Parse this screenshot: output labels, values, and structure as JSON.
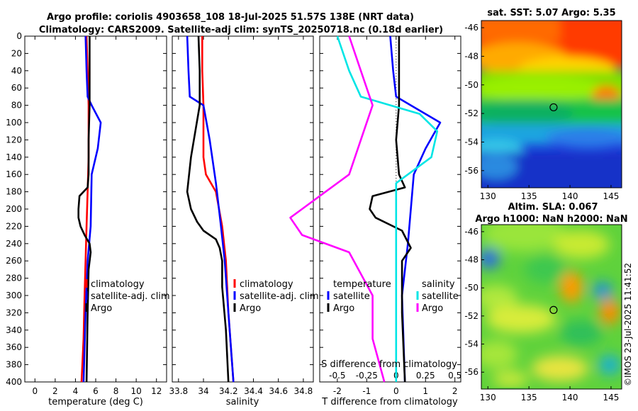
{
  "figure": {
    "title_line1": "Argo profile: coriolis 4903658_108 18-Jul-2025 51.57S 138E (NRT data)",
    "title_line2": "Climatology: CARS2009. Satellite-adj clim: synTS_20250718.nc (0.18d earlier)",
    "watermark": "©IMOS 23-Jul-2025 11:41:52"
  },
  "colors": {
    "climatology": "#ff0000",
    "satellite": "#0000ff",
    "argo": "#000000",
    "salinity_sat": "#00e5e5",
    "salinity_argo": "#ff00ff",
    "dotted": "#000000"
  },
  "legends": {
    "panel1": [
      "climatology",
      "satellite-adj. clim",
      "Argo"
    ],
    "panel2": [
      "climatology",
      "satellite-adj. clim",
      "Argo"
    ],
    "panel3_temp_head": "temperature",
    "panel3_temp": [
      "satellite",
      "Argo"
    ],
    "panel3_sal_head": "salinity",
    "panel3_sal": [
      "satellite",
      "Argo"
    ]
  },
  "chart_data": [
    {
      "type": "line",
      "name": "temperature profile",
      "xlabel": "temperature (deg C)",
      "ylabel": "",
      "xlim": [
        -1,
        13
      ],
      "ylim": [
        400,
        0
      ],
      "xticks": [
        "0",
        "2",
        "4",
        "6",
        "8",
        "10",
        "12"
      ],
      "yticks": [
        "0",
        "20",
        "40",
        "60",
        "80",
        "100",
        "120",
        "140",
        "160",
        "180",
        "200",
        "220",
        "240",
        "260",
        "280",
        "300",
        "320",
        "340",
        "360",
        "380",
        "400"
      ],
      "series": [
        {
          "name": "climatology",
          "x": [
            5.1,
            5.2,
            5.3,
            5.3,
            5.2,
            5.1,
            5.0,
            4.9,
            4.8,
            4.6
          ],
          "y": [
            0,
            40,
            80,
            140,
            180,
            220,
            260,
            300,
            350,
            400
          ]
        },
        {
          "name": "satellite-adj. clim",
          "x": [
            5.0,
            5.1,
            5.2,
            5.6,
            6.5,
            6.2,
            5.6,
            5.5,
            5.2,
            5.0,
            4.8
          ],
          "y": [
            0,
            40,
            70,
            80,
            100,
            130,
            160,
            220,
            260,
            320,
            400
          ]
        },
        {
          "name": "Argo",
          "x": [
            5.4,
            5.4,
            5.4,
            5.3,
            5.3,
            5.2,
            4.4,
            4.3,
            4.3,
            4.5,
            4.9,
            5.4,
            5.5,
            5.3,
            5.2,
            5.1
          ],
          "y": [
            0,
            40,
            80,
            120,
            160,
            175,
            185,
            200,
            210,
            220,
            230,
            240,
            250,
            270,
            320,
            400
          ]
        }
      ]
    },
    {
      "type": "line",
      "name": "salinity profile",
      "xlabel": "salinity",
      "ylabel": "",
      "xlim": [
        33.75,
        34.88
      ],
      "ylim": [
        400,
        0
      ],
      "xticks": [
        "33.8",
        "34",
        "34.2",
        "34.4",
        "34.6",
        "34.8"
      ],
      "series": [
        {
          "name": "climatology",
          "x": [
            33.99,
            33.99,
            34.0,
            34.0,
            34.02,
            34.1,
            34.15,
            34.18,
            34.2,
            34.24
          ],
          "y": [
            0,
            40,
            80,
            140,
            160,
            180,
            220,
            260,
            320,
            400
          ]
        },
        {
          "name": "satellite-adj. clim",
          "x": [
            33.87,
            33.88,
            33.89,
            34.0,
            34.05,
            34.1,
            34.14,
            34.17,
            34.2,
            34.24
          ],
          "y": [
            0,
            40,
            70,
            80,
            120,
            170,
            220,
            260,
            320,
            400
          ]
        },
        {
          "name": "Argo",
          "x": [
            33.96,
            33.97,
            33.97,
            33.9,
            33.87,
            33.9,
            33.95,
            34.0,
            34.1,
            34.13,
            34.15,
            34.15,
            34.18,
            34.2
          ],
          "y": [
            0,
            40,
            80,
            140,
            180,
            200,
            215,
            225,
            235,
            245,
            260,
            290,
            340,
            400
          ]
        }
      ]
    },
    {
      "type": "line",
      "name": "difference from climatology",
      "xlabel": "T difference from climatology",
      "xlabel_top": "S difference from climatology",
      "xlim": [
        -2.6,
        2.2
      ],
      "ylim": [
        400,
        0
      ],
      "xticks_bottom": [
        "-2",
        "-1",
        "0",
        "1",
        "2"
      ],
      "xticks_top": [
        "-0.5",
        "-0.25",
        "0",
        "0.25",
        "0.5"
      ],
      "series": [
        {
          "name": "temperature satellite",
          "x": [
            -0.2,
            -0.1,
            0.0,
            0.5,
            1.5,
            1.0,
            0.6,
            0.4,
            0.2,
            0.3
          ],
          "y": [
            0,
            40,
            70,
            80,
            100,
            130,
            160,
            240,
            300,
            400
          ]
        },
        {
          "name": "temperature Argo",
          "x": [
            0.1,
            0.1,
            0.1,
            0.0,
            0.1,
            0.3,
            -0.8,
            -0.9,
            -0.7,
            0.2,
            0.5,
            0.2,
            0.2,
            0.3
          ],
          "y": [
            0,
            40,
            80,
            120,
            160,
            175,
            185,
            200,
            210,
            225,
            245,
            260,
            320,
            400
          ]
        },
        {
          "name": "salinity satellite",
          "x": [
            -0.5,
            -0.4,
            -0.3,
            0.2,
            0.35,
            0.3,
            0.0,
            0.0,
            0.0,
            0.0
          ],
          "y": [
            0,
            40,
            70,
            90,
            110,
            140,
            170,
            220,
            300,
            400
          ]
        },
        {
          "name": "salinity Argo",
          "x": [
            -0.4,
            -0.3,
            -0.2,
            -0.3,
            -0.4,
            -0.6,
            -0.8,
            -0.9,
            -0.8,
            -0.4,
            -0.2,
            -0.2,
            -0.1
          ],
          "y": [
            0,
            40,
            80,
            120,
            160,
            180,
            200,
            210,
            230,
            250,
            300,
            350,
            400
          ]
        }
      ]
    },
    {
      "type": "heatmap",
      "name": "satellite SST map",
      "title": "sat. SST: 5.07 Argo: 5.35",
      "xticks": [
        "130",
        "135",
        "140",
        "145"
      ],
      "yticks": [
        "-46",
        "-48",
        "-50",
        "-52",
        "-54",
        "-56"
      ],
      "xlim": [
        129.2,
        146.3
      ],
      "ylim": [
        -57.2,
        -45.5
      ],
      "marker": {
        "lon": 138,
        "lat": -51.57
      }
    },
    {
      "type": "heatmap",
      "name": "altimetry SLA map",
      "title_line1": "Altim. SLA: 0.067",
      "title_line2": "Argo h1000: NaN h2000: NaN",
      "xticks": [
        "130",
        "135",
        "140",
        "145"
      ],
      "yticks": [
        "-46",
        "-48",
        "-50",
        "-52",
        "-54",
        "-56"
      ],
      "xlim": [
        129.2,
        146.3
      ],
      "ylim": [
        -57.2,
        -45.5
      ],
      "marker": {
        "lon": 138,
        "lat": -51.57
      }
    }
  ]
}
